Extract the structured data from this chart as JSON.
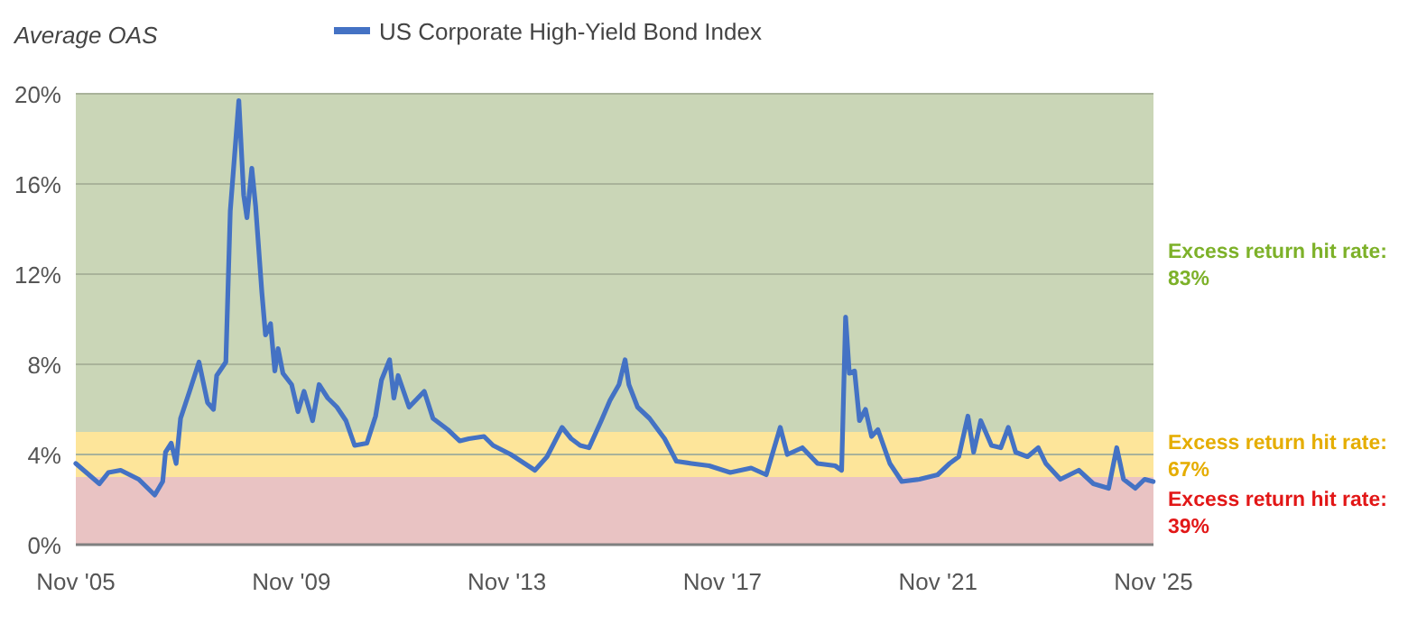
{
  "chart_data": {
    "type": "line",
    "ylabel": "Average OAS",
    "legend": "top",
    "grid": "y",
    "xlim": [
      "2005-11",
      "2025-11"
    ],
    "xticks": [
      {
        "value": "2005-11",
        "label": "Nov '05"
      },
      {
        "value": "2009-11",
        "label": "Nov '09"
      },
      {
        "value": "2013-11",
        "label": "Nov '13"
      },
      {
        "value": "2017-11",
        "label": "Nov '17"
      },
      {
        "value": "2021-11",
        "label": "Nov '21"
      },
      {
        "value": "2025-11",
        "label": "Nov '25"
      }
    ],
    "ylim": [
      0,
      20
    ],
    "yticks": [
      {
        "value": 0,
        "label": "0%"
      },
      {
        "value": 4,
        "label": "4%"
      },
      {
        "value": 8,
        "label": "8%"
      },
      {
        "value": 12,
        "label": "12%"
      },
      {
        "value": 16,
        "label": "16%"
      },
      {
        "value": 20,
        "label": "20%"
      }
    ],
    "bands": [
      {
        "axis": "y",
        "from": 5,
        "to": 20,
        "label": "Excess return hit rate: 83%",
        "color": "#cad6b7"
      },
      {
        "axis": "y",
        "from": 3,
        "to": 5,
        "label": "Excess return hit rate: 67%",
        "color": "#fde59a"
      },
      {
        "axis": "y",
        "from": 0,
        "to": 3,
        "label": "Excess return hit rate: 39%",
        "color": "#e9c3c3"
      }
    ],
    "series": [
      {
        "name": "US Corporate High-Yield Bond Index",
        "color": "#4472c4",
        "x": [
          "2005-11-01",
          "2006-04-10",
          "2006-06-10",
          "2006-09-01",
          "2007-01-01",
          "2007-04-20",
          "2007-06-13",
          "2007-07-02",
          "2007-08-10",
          "2007-09-12",
          "2007-10-12",
          "2007-12-12",
          "2008-02-14",
          "2008-04-12",
          "2008-05-22",
          "2008-06-13",
          "2008-08-14",
          "2008-09-13",
          "2008-11-10",
          "2008-12-13",
          "2009-01-04",
          "2009-02-06",
          "2009-03-04",
          "2009-04-15",
          "2009-05-10",
          "2009-06-13",
          "2009-07-12",
          "2009-08-03",
          "2009-09-05",
          "2009-11-03",
          "2009-12-16",
          "2010-01-26",
          "2010-03-25",
          "2010-05-08",
          "2010-07-06",
          "2010-09-06",
          "2010-11-06",
          "2011-01-04",
          "2011-03-28",
          "2011-05-26",
          "2011-07-05",
          "2011-08-29",
          "2011-09-27",
          "2011-10-26",
          "2012-01-08",
          "2012-04-20",
          "2012-06-18",
          "2012-09-27",
          "2012-12-17",
          "2013-02-17",
          "2013-05-30",
          "2013-07-31",
          "2013-11-28",
          "2014-05-10",
          "2014-07-31",
          "2014-11-10",
          "2015-01-11",
          "2015-03-13",
          "2015-05-12",
          "2015-08-03",
          "2015-10-01",
          "2015-12-01",
          "2016-01-11",
          "2016-02-06",
          "2016-04-05",
          "2016-06-25",
          "2016-10-05",
          "2016-12-24",
          "2017-04-05",
          "2017-08-03",
          "2017-12-24",
          "2018-05-15",
          "2018-08-25",
          "2018-11-28",
          "2019-01-15",
          "2019-04-27",
          "2019-08-08",
          "2019-12-05",
          "2020-01-18",
          "2020-02-14",
          "2020-03-10",
          "2020-04-15",
          "2020-05-18",
          "2020-06-28",
          "2020-08-08",
          "2020-09-20",
          "2020-12-10",
          "2021-03-01",
          "2021-06-28",
          "2021-10-30",
          "2022-01-19",
          "2022-03-22",
          "2022-05-23",
          "2022-07-01",
          "2022-08-18",
          "2022-10-30",
          "2023-01-01",
          "2023-02-21",
          "2023-04-12",
          "2023-07-01",
          "2023-09-12",
          "2023-11-02",
          "2024-02-09",
          "2024-06-13",
          "2024-09-20",
          "2025-01-01",
          "2025-02-25",
          "2025-04-12",
          "2025-07-01",
          "2025-09-02",
          "2025-10-30"
        ],
        "values": [
          3.6,
          2.7,
          3.2,
          3.3,
          2.9,
          2.2,
          2.8,
          4.1,
          4.5,
          3.6,
          5.6,
          6.8,
          8.1,
          6.3,
          6.0,
          7.5,
          8.1,
          14.8,
          19.7,
          15.5,
          14.5,
          16.7,
          15.0,
          11.2,
          9.3,
          9.8,
          7.7,
          8.7,
          7.6,
          7.1,
          5.9,
          6.8,
          5.5,
          7.1,
          6.5,
          6.1,
          5.5,
          4.4,
          4.5,
          5.7,
          7.3,
          8.2,
          6.5,
          7.5,
          6.1,
          6.8,
          5.6,
          5.1,
          4.6,
          4.7,
          4.8,
          4.4,
          4.0,
          3.3,
          3.9,
          5.2,
          4.7,
          4.4,
          4.3,
          5.5,
          6.4,
          7.1,
          8.2,
          7.1,
          6.1,
          5.6,
          4.7,
          3.7,
          3.6,
          3.5,
          3.2,
          3.4,
          3.1,
          5.2,
          4.0,
          4.3,
          3.6,
          3.5,
          3.3,
          10.1,
          7.6,
          7.7,
          5.5,
          6.0,
          4.8,
          5.1,
          3.6,
          2.8,
          2.9,
          3.1,
          3.6,
          3.9,
          5.7,
          4.1,
          5.5,
          4.4,
          4.3,
          5.2,
          4.1,
          3.9,
          4.3,
          3.6,
          2.9,
          3.3,
          2.7,
          2.5,
          4.3,
          2.9,
          2.5,
          2.9,
          2.8
        ]
      }
    ]
  }
}
